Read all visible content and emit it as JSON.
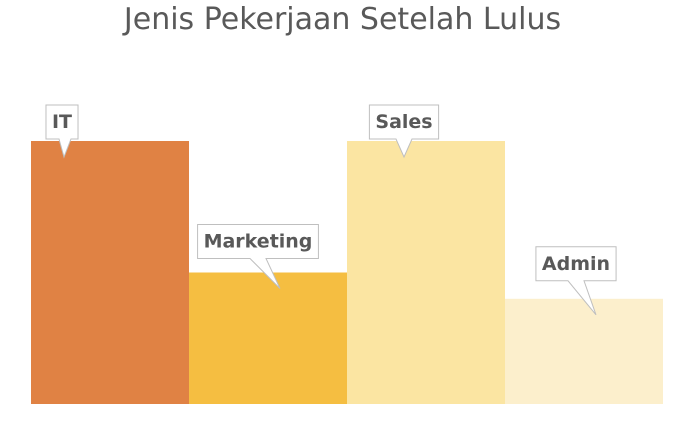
{
  "chart_data": {
    "type": "bar",
    "title": "Jenis Pekerjaan Setelah Lulus",
    "categories": [
      "IT",
      "Marketing",
      "Sales",
      "Admin"
    ],
    "values": [
      100,
      50,
      100,
      40
    ],
    "ylim": [
      0,
      100
    ],
    "xlabel": "",
    "ylabel": "",
    "grid": false,
    "legend": "none",
    "data_labels": "category-name callouts",
    "colors": [
      "#E08244",
      "#F5BE41",
      "#FBE5A2",
      "#FCEFCC"
    ]
  }
}
